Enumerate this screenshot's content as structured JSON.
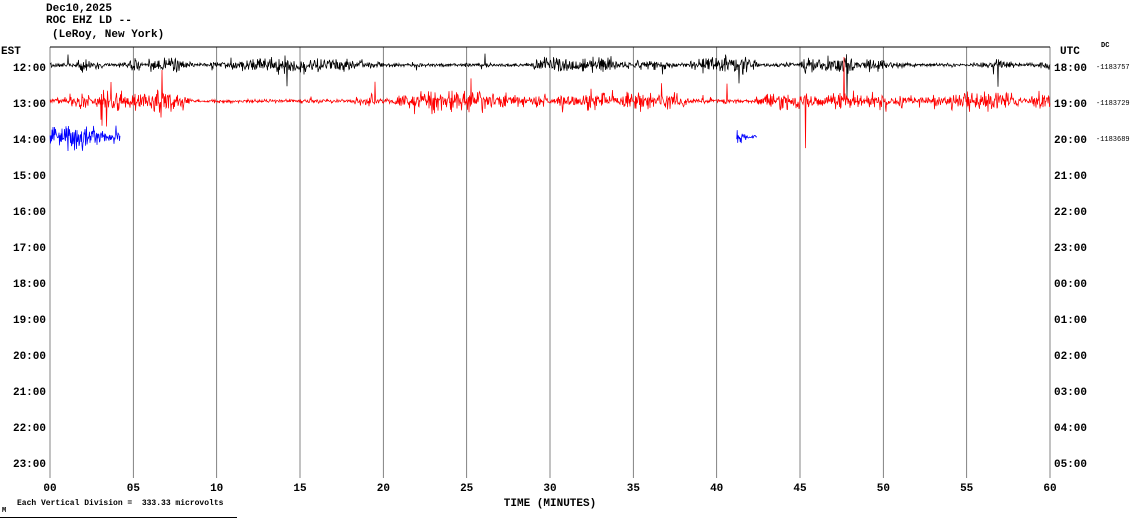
{
  "header": {
    "date": "Dec10,2025",
    "station": "ROC EHZ LD --",
    "location": "(LeRoy, New York)"
  },
  "corner_labels": {
    "left": "EST",
    "right": "UTC",
    "dc": "DC"
  },
  "footer": {
    "scale_note": "Each Vertical Division =  333.33 microvolts",
    "corner_mark": "M"
  },
  "chart_data": {
    "type": "line",
    "title": "Helicorder seismogram ROC EHZ LD -- (LeRoy, New York)",
    "xlabel": "TIME (MINUTES)",
    "x_range": [
      0,
      60
    ],
    "minutes_per_row": 60,
    "grid_interval_minutes": 5,
    "x_ticks": [
      "00",
      "05",
      "10",
      "15",
      "20",
      "25",
      "30",
      "35",
      "40",
      "45",
      "50",
      "55",
      "60"
    ],
    "left_times_est": [
      "12:00",
      "13:00",
      "14:00",
      "15:00",
      "16:00",
      "17:00",
      "18:00",
      "19:00",
      "20:00",
      "21:00",
      "22:00",
      "23:00"
    ],
    "right_times_utc": [
      "18:00",
      "19:00",
      "20:00",
      "21:00",
      "22:00",
      "23:00",
      "00:00",
      "01:00",
      "02:00",
      "03:00",
      "04:00",
      "05:00"
    ],
    "right_annotations": [
      {
        "row": 0,
        "text": "-1183757"
      },
      {
        "row": 1,
        "text": "-1183729"
      },
      {
        "row": 2,
        "text": "-1183689"
      }
    ],
    "scale_note": "Each Vertical Division =  333.33 microvolts",
    "traces": [
      {
        "name": "est-1200-black",
        "color": "#000000",
        "row": 0,
        "seed": 101,
        "segments": [
          {
            "start_min": 0,
            "end_min": 60,
            "amp_start": 7,
            "amp_end": 7,
            "spike_prob": 0.012,
            "spike_mult": 5,
            "max_up": 60,
            "max_down": 92
          }
        ]
      },
      {
        "name": "est-1300-red",
        "color": "#ff0000",
        "row": 1,
        "seed": 202,
        "segments": [
          {
            "start_min": 0,
            "end_min": 60,
            "amp_start": 8,
            "amp_end": 8,
            "spike_prob": 0.014,
            "spike_mult": 7,
            "max_up": 44,
            "max_down": 148
          }
        ]
      },
      {
        "name": "est-1400-blue",
        "color": "#0000ff",
        "row": 2,
        "seed": 303,
        "segments": [
          {
            "start_min": 0,
            "end_min": 4.2,
            "amp_start": 13,
            "amp_end": 5,
            "spike_prob": 0.01,
            "spike_mult": 3,
            "max_up": 26,
            "max_down": 42
          },
          {
            "start_min": 41.2,
            "end_min": 42.4,
            "amp_start": 9,
            "amp_end": 4,
            "spike_prob": 0.01,
            "spike_mult": 2,
            "max_up": 16,
            "max_down": 18
          }
        ]
      }
    ]
  }
}
